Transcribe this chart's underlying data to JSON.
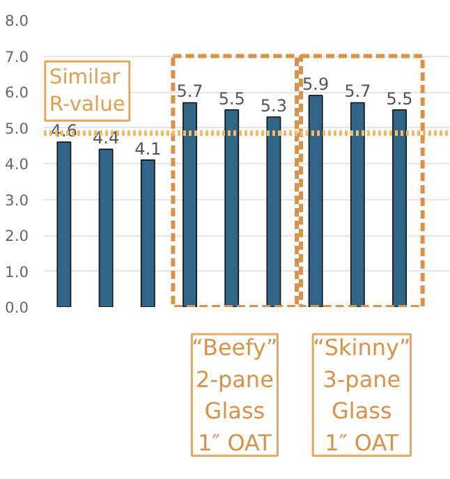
{
  "chart_data": {
    "type": "bar",
    "categories": [
      null,
      null,
      null,
      null,
      null,
      null,
      null,
      null,
      null,
      null
    ],
    "values": [
      4.6,
      4.4,
      4.1,
      5.7,
      5.5,
      5.3,
      5.9,
      5.7,
      5.5,
      null
    ],
    "color": "#2f6687",
    "data_labels": true,
    "ylim": [
      0,
      8
    ],
    "yticks": [
      {
        "value": 0,
        "label": "0.0"
      },
      {
        "value": 1,
        "label": "1.0"
      },
      {
        "value": 2,
        "label": "2.0"
      },
      {
        "value": 3,
        "label": "3.0"
      },
      {
        "value": 4,
        "label": "4.0"
      },
      {
        "value": 5,
        "label": "5.0"
      },
      {
        "value": 6,
        "label": "6.0"
      },
      {
        "value": 7,
        "label": "7.0"
      },
      {
        "value": 8,
        "label": "8.0"
      }
    ],
    "grid": "y",
    "ref_lines": [
      {
        "axis": "y",
        "value": 4.85,
        "color": "#f2b96a",
        "line_style": "dotted"
      }
    ],
    "annotations": [
      "Similar\nR-value",
      "“Beefy”\n2-pane\nGlass\n1″ OAT",
      "“Skinny”\n3-pane\nGlass\n1″ OAT"
    ]
  }
}
